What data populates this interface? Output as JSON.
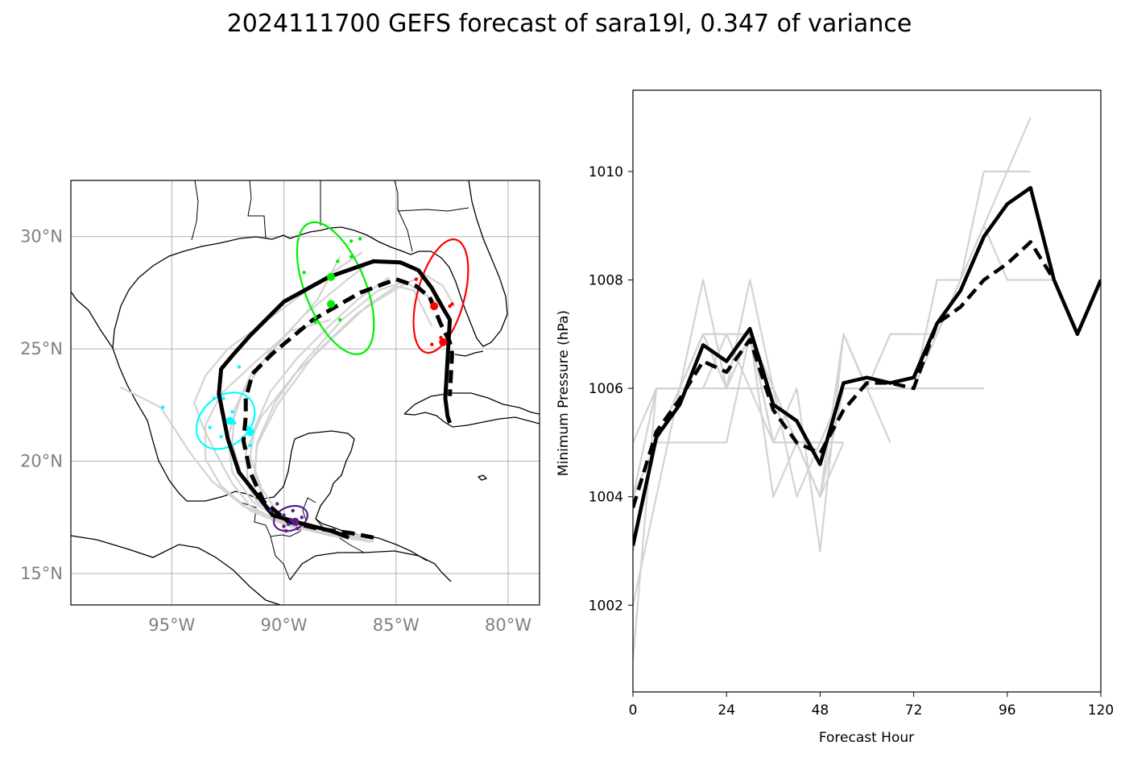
{
  "title": "2024111700 GEFS forecast of sara19l, 0.347 of variance",
  "colors": {
    "member": "#d3d3d3",
    "mean": "#000000",
    "cluster_purple": "#5b1a8a",
    "cluster_cyan": "#00ffff",
    "cluster_green": "#00ee00",
    "cluster_red": "#ff0000",
    "coast": "#000000",
    "grid": "#b0b0b0"
  },
  "chart_data": [
    {
      "type": "line",
      "subtype": "track-map",
      "title": "",
      "xlim": [
        -99.5,
        -78.6
      ],
      "ylim": [
        13.6,
        32.5
      ],
      "x_ticks": [
        -95,
        -90,
        -85,
        -80
      ],
      "x_tick_labels": [
        "95°W",
        "90°W",
        "85°W",
        "80°W"
      ],
      "y_ticks": [
        15,
        20,
        25,
        30
      ],
      "y_tick_labels": [
        "15°N",
        "20°N",
        "25°N",
        "30°N"
      ],
      "grid": true,
      "mean_solid": {
        "lon": [
          -87.1,
          -87.9,
          -89.5,
          -90.5,
          -91.2,
          -92.0,
          -92.5,
          -92.9,
          -92.8,
          -92.3,
          -91.5,
          -90.0,
          -88.0,
          -86.0,
          -84.8,
          -84.0,
          -83.4,
          -82.9,
          -82.6,
          -82.8,
          -82.7,
          -82.6
        ],
        "lat": [
          16.6,
          16.9,
          17.3,
          17.6,
          18.5,
          19.5,
          21.0,
          23.0,
          24.1,
          24.7,
          25.6,
          27.1,
          28.2,
          28.9,
          28.85,
          28.5,
          27.7,
          26.8,
          26.3,
          22.8,
          22.0,
          21.7
        ]
      },
      "mean_dashed": {
        "lon": [
          -86.0,
          -87.0,
          -88.5,
          -89.8,
          -90.9,
          -91.5,
          -91.8,
          -91.7,
          -91.7,
          -91.4,
          -90.5,
          -88.7,
          -86.6,
          -85.0,
          -84.1,
          -83.5,
          -83.0,
          -82.6,
          -82.5,
          -82.6
        ],
        "lat": [
          16.6,
          16.8,
          17.0,
          17.3,
          18.2,
          19.5,
          20.9,
          22.0,
          22.8,
          23.9,
          24.8,
          26.3,
          27.5,
          28.1,
          27.8,
          27.3,
          26.1,
          25.3,
          24.8,
          22.9
        ]
      },
      "members": [
        {
          "lon": [
            -86.0,
            -88.0,
            -90.0,
            -91.5,
            -92.3,
            -93.0,
            -93.6,
            -94.0,
            -93.5,
            -92.5,
            -91.0,
            -89.5,
            -88.0,
            -86.5
          ],
          "lat": [
            16.4,
            16.7,
            17.2,
            18.0,
            19.0,
            20.3,
            21.5,
            22.6,
            23.8,
            25.0,
            26.1,
            27.2,
            28.3,
            29.3
          ]
        },
        {
          "lon": [
            -86.0,
            -88.0,
            -90.0,
            -91.2,
            -91.9,
            -92.3,
            -92.2,
            -91.5,
            -90.0,
            -88.5,
            -87.5
          ],
          "lat": [
            16.5,
            16.9,
            17.4,
            18.2,
            19.4,
            20.8,
            22.3,
            23.8,
            25.5,
            27.2,
            29.1
          ]
        },
        {
          "lon": [
            -86.2,
            -88.0,
            -90.2,
            -91.0,
            -91.5,
            -91.3,
            -90.6,
            -89.4,
            -88.0,
            -86.7,
            -85.3
          ],
          "lat": [
            16.4,
            16.9,
            17.6,
            18.8,
            20.2,
            21.5,
            23.1,
            24.6,
            26.0,
            27.2,
            28.2
          ]
        },
        {
          "lon": [
            -86.0,
            -88.0,
            -89.8,
            -90.8,
            -91.3,
            -91.2,
            -90.3,
            -88.6,
            -86.7,
            -84.8,
            -83.7,
            -82.9,
            -82.4
          ],
          "lat": [
            16.6,
            16.9,
            17.3,
            18.1,
            19.3,
            20.7,
            22.5,
            24.8,
            26.6,
            27.8,
            28.3,
            27.8,
            26.9
          ]
        },
        {
          "lon": [
            -86.3,
            -88.0,
            -89.8,
            -91.5,
            -92.8,
            -93.5,
            -93.5,
            -92.8,
            -91.3,
            -89.7,
            -87.9
          ],
          "lat": [
            16.5,
            16.8,
            17.1,
            17.8,
            18.9,
            20.1,
            21.6,
            23.0,
            24.4,
            25.8,
            26.3
          ]
        },
        {
          "lon": [
            -86.0,
            -88.0,
            -89.7,
            -90.9,
            -91.6,
            -91.7,
            -91.0,
            -89.5,
            -87.7,
            -86.3,
            -85.0,
            -84.2,
            -83.4
          ],
          "lat": [
            16.5,
            16.9,
            17.3,
            18.0,
            19.0,
            20.4,
            22.0,
            23.9,
            25.6,
            26.9,
            27.8,
            27.6,
            26.0
          ]
        },
        {
          "lon": [
            -86.0,
            -88.0,
            -90.0,
            -91.8,
            -93.2,
            -94.2,
            -95.5,
            -97.3
          ],
          "lat": [
            16.5,
            16.9,
            17.3,
            18.0,
            19.1,
            20.4,
            22.4,
            23.3
          ]
        },
        {
          "lon": [
            -86.0,
            -88.0,
            -89.7,
            -90.8,
            -91.3,
            -91.2,
            -90.8,
            -90.4,
            -89.2,
            -87.4,
            -85.8,
            -84.6,
            -83.2
          ],
          "lat": [
            16.6,
            16.9,
            17.2,
            18.1,
            19.5,
            20.8,
            21.7,
            22.6,
            24.3,
            26.3,
            27.6,
            28.0,
            27.1
          ]
        },
        {
          "lon": [
            -86.5,
            -88.3,
            -90.0,
            -91.4,
            -92.3,
            -92.5,
            -91.9,
            -90.7,
            -89.1,
            -87.4,
            -86.0
          ],
          "lat": [
            16.5,
            16.8,
            17.3,
            18.2,
            19.5,
            21.1,
            22.9,
            24.8,
            26.5,
            27.9,
            29.0
          ]
        }
      ],
      "ellipses": [
        {
          "name": "purple",
          "center": [
            -89.7,
            17.45
          ],
          "width_deg": 1.55,
          "height_deg": 1.05,
          "angle_deg": -20
        },
        {
          "name": "cyan",
          "center": [
            -92.6,
            21.8
          ],
          "width_deg": 2.9,
          "height_deg": 2.15,
          "angle_deg": -42
        },
        {
          "name": "green",
          "center": [
            -87.7,
            27.7
          ],
          "width_deg": 2.7,
          "height_deg": 6.25,
          "angle_deg": -22
        },
        {
          "name": "red",
          "center": [
            -83.0,
            27.35
          ],
          "width_deg": 2.1,
          "height_deg": 5.2,
          "angle_deg": 15
        }
      ],
      "cluster_points": [
        {
          "name": "purple",
          "lon": [
            -90.0,
            -89.7,
            -89.8,
            -90.0,
            -89.4,
            -90.6,
            -89.2,
            -89.6,
            -90.3,
            -89.9
          ],
          "lat": [
            17.6,
            17.4,
            17.2,
            17.1,
            17.0,
            17.8,
            17.5,
            17.8,
            18.1,
            16.9
          ]
        },
        {
          "name": "cyan",
          "lon": [
            -92.5,
            -93.1,
            -92.3,
            -91.5,
            -92.8,
            -91.6,
            -93.3,
            -92.7,
            -92.0,
            -92.2,
            -95.4
          ],
          "lat": [
            21.8,
            22.8,
            22.2,
            20.7,
            21.1,
            21.5,
            21.5,
            22.8,
            24.2,
            21.7,
            22.4
          ]
        },
        {
          "name": "green",
          "lon": [
            -87.6,
            -88.6,
            -87.0,
            -88.6,
            -87.5,
            -89.1,
            -87.0,
            -86.6
          ],
          "lat": [
            28.9,
            26.4,
            29.1,
            26.2,
            26.3,
            28.4,
            29.8,
            29.9
          ]
        },
        {
          "name": "red",
          "lon": [
            -82.5,
            -83.0,
            -84.1,
            -83.4,
            -82.6
          ],
          "lat": [
            27.0,
            25.5,
            28.1,
            25.2,
            26.9
          ]
        }
      ],
      "cluster_markers": [
        {
          "name": "purple",
          "lon": [
            -89.5
          ],
          "lat": [
            17.3
          ]
        },
        {
          "name": "cyan",
          "lon": [
            -92.4,
            -91.5
          ],
          "lat": [
            21.8,
            21.3
          ]
        },
        {
          "name": "green",
          "lon": [
            -87.9,
            -87.9
          ],
          "lat": [
            28.2,
            27.0
          ]
        },
        {
          "name": "red",
          "lon": [
            -83.3,
            -82.9
          ],
          "lat": [
            26.9,
            25.3
          ]
        }
      ]
    },
    {
      "type": "line",
      "subtype": "pressure",
      "title": "",
      "xlabel": "Forecast Hour",
      "ylabel": "Minimum Pressure (hPa)",
      "xlim": [
        0,
        120
      ],
      "ylim": [
        1000.4,
        1011.5
      ],
      "x_ticks": [
        0,
        24,
        48,
        72,
        96,
        120
      ],
      "y_ticks": [
        1002,
        1004,
        1006,
        1008,
        1010
      ],
      "grid": false,
      "mean_solid": {
        "x": [
          0,
          6,
          12,
          18,
          24,
          30,
          36,
          42,
          48,
          54,
          60,
          66,
          72,
          78,
          84,
          90,
          96,
          102,
          108,
          114,
          120
        ],
        "y": [
          1003.1,
          1005.1,
          1005.7,
          1006.8,
          1006.5,
          1007.1,
          1005.7,
          1005.4,
          1004.6,
          1006.1,
          1006.2,
          1006.1,
          1006.2,
          1007.2,
          1007.8,
          1008.8,
          1009.4,
          1009.7,
          1008.0,
          1007.0,
          1008.0
        ]
      },
      "mean_dashed": {
        "x": [
          0,
          6,
          12,
          18,
          24,
          30,
          36,
          42,
          48,
          54,
          60,
          66,
          72,
          78,
          84,
          90,
          96,
          102,
          108
        ],
        "y": [
          1003.8,
          1005.2,
          1005.8,
          1006.5,
          1006.3,
          1006.9,
          1005.6,
          1005.0,
          1004.8,
          1005.6,
          1006.1,
          1006.1,
          1006.0,
          1007.2,
          1007.5,
          1008.0,
          1008.3,
          1008.7,
          1008.0
        ]
      },
      "members": [
        {
          "x": [
            0,
            6,
            12,
            18,
            24,
            30,
            36,
            42,
            48,
            54
          ],
          "y": [
            1005,
            1006,
            1006,
            1008,
            1006,
            1008,
            1006,
            1004,
            1005,
            1005
          ]
        },
        {
          "x": [
            0,
            6,
            12,
            18,
            24,
            30,
            36,
            42,
            48,
            54,
            60,
            66
          ],
          "y": [
            1003,
            1005,
            1005,
            1005,
            1005,
            1007,
            1005,
            1005,
            1004,
            1006,
            1006,
            1005
          ]
        },
        {
          "x": [
            0,
            6,
            12,
            18,
            24,
            30,
            36,
            42,
            48,
            54,
            60
          ],
          "y": [
            1002,
            1004,
            1006,
            1007,
            1006,
            1007,
            1005,
            1006,
            1003,
            1007,
            1006
          ]
        },
        {
          "x": [
            0,
            6,
            12,
            18,
            24,
            30,
            36,
            42,
            48,
            54,
            60,
            66,
            72,
            78,
            84,
            90,
            96,
            102
          ],
          "y": [
            1001,
            1006,
            1006,
            1007,
            1007,
            1007,
            1005,
            1005,
            1004,
            1007,
            1006,
            1007,
            1007,
            1007,
            1008,
            1009,
            1010,
            1011
          ]
        },
        {
          "x": [
            0,
            6,
            12,
            18,
            24,
            30,
            36,
            42,
            48,
            54,
            60,
            66,
            72,
            78,
            84,
            90
          ],
          "y": [
            1004,
            1005,
            1006,
            1006,
            1007,
            1006,
            1006,
            1005,
            1005,
            1006,
            1006,
            1006,
            1006,
            1006,
            1006,
            1006
          ]
        },
        {
          "x": [
            0,
            6,
            12,
            18,
            24,
            30,
            36,
            42,
            48,
            54,
            60,
            66,
            72,
            78,
            84,
            90,
            96,
            102
          ],
          "y": [
            1003,
            1005,
            1006,
            1007,
            1006,
            1007,
            1006,
            1005,
            1004,
            1006,
            1006,
            1006,
            1006,
            1008,
            1008,
            1010,
            1010,
            1010
          ]
        },
        {
          "x": [
            0,
            6,
            12,
            18,
            24,
            30,
            36,
            42,
            48,
            54,
            60,
            66,
            72,
            78,
            84,
            90,
            96,
            102,
            108
          ],
          "y": [
            1003,
            1005,
            1006,
            1007,
            1007,
            1007,
            1006,
            1005,
            1005,
            1006,
            1006,
            1006,
            1006,
            1007,
            1008,
            1009,
            1008,
            1008,
            1008
          ]
        },
        {
          "x": [
            0,
            6,
            12,
            18,
            24,
            30,
            36,
            42,
            48,
            54
          ],
          "y": [
            1004,
            1006,
            1006,
            1007,
            1006,
            1007,
            1004,
            1005,
            1004,
            1005
          ]
        },
        {
          "x": [
            0,
            6,
            12,
            18,
            24,
            30,
            36,
            42,
            48,
            54,
            60,
            66,
            72
          ],
          "y": [
            1003,
            1005,
            1006,
            1006,
            1006,
            1006,
            1005,
            1005,
            1004,
            1007,
            1006,
            1007,
            1007
          ]
        }
      ]
    }
  ]
}
